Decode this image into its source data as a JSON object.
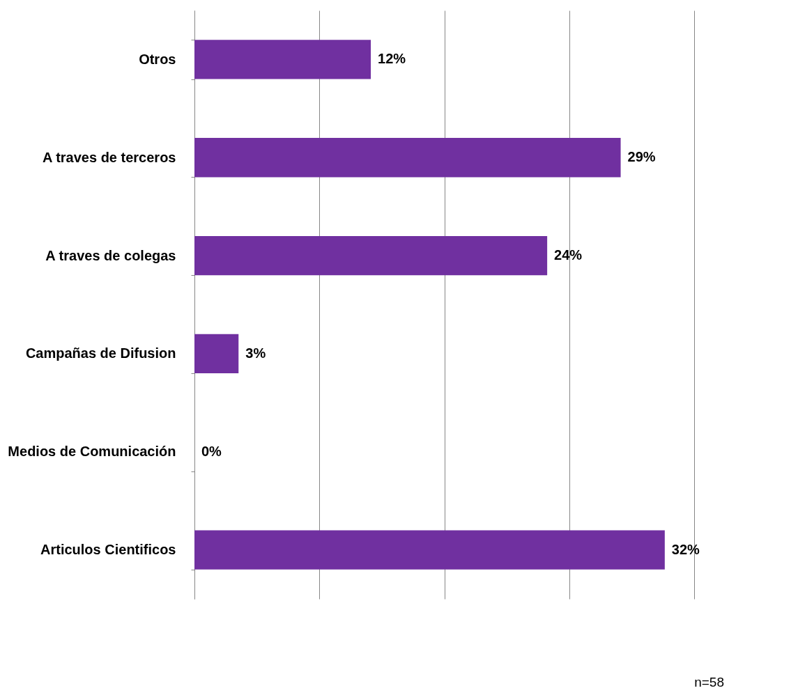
{
  "chart_data": {
    "type": "bar",
    "orientation": "horizontal",
    "categories": [
      "Otros",
      "A traves de terceros",
      "A traves de colegas",
      "Campañas de Difusion",
      "Medios de Comunicación",
      "Articulos Cientificos"
    ],
    "values": [
      12,
      29,
      24,
      3,
      0,
      32
    ],
    "value_labels": [
      "12%",
      "29%",
      "24%",
      "3%",
      "0%",
      "32%"
    ],
    "color": "#7030a0",
    "xlim": [
      0,
      34
    ],
    "xticks": [
      {
        "value": 0,
        "label": null
      },
      {
        "value": 8.5,
        "label": null
      },
      {
        "value": 17,
        "label": null
      },
      {
        "value": 25.5,
        "label": null
      },
      {
        "value": 34,
        "label": null
      }
    ],
    "grid": "x",
    "tick_labels": "y",
    "annotations": [
      "n=58"
    ]
  }
}
